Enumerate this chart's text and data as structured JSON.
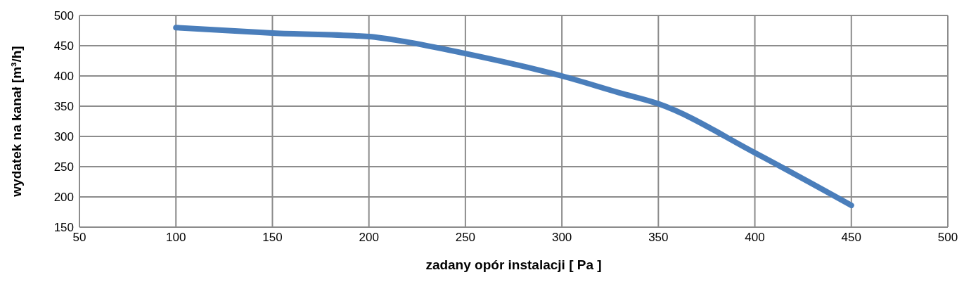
{
  "chart_data": {
    "type": "line",
    "xlabel": "zadany opór instalacji [ Pa ]",
    "ylabel": "wydatek na kanał  [m³/h]",
    "x": [
      100,
      150,
      200,
      220,
      250,
      300,
      330,
      350,
      400,
      450
    ],
    "series": [
      {
        "color": "#4a7ebb",
        "values": [
          480,
          471,
          465,
          456,
          437,
          400,
          372,
          354,
          273,
          186
        ]
      }
    ],
    "xlim": [
      50,
      500
    ],
    "xticks": [
      50,
      100,
      150,
      200,
      250,
      300,
      350,
      400,
      450,
      500
    ],
    "ylim": [
      150,
      500
    ],
    "yticks": [
      150,
      200,
      250,
      300,
      350,
      400,
      450,
      500
    ],
    "grid": true,
    "legend": false,
    "marker": "none",
    "line_style": "solid"
  }
}
